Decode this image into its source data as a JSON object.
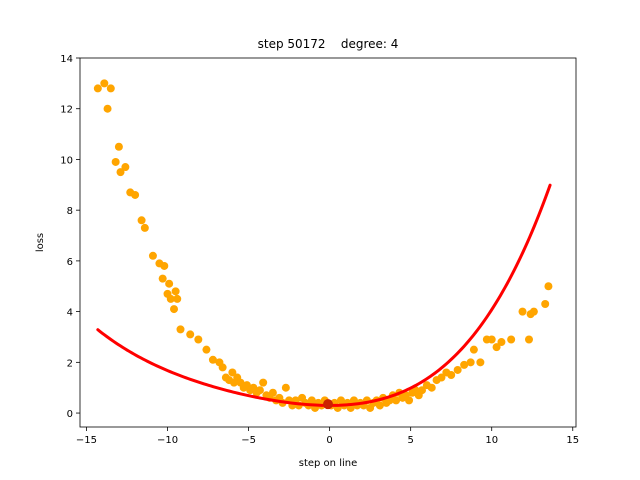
{
  "chart_data": {
    "type": "scatter",
    "title": "step 50172    degree: 4",
    "xlabel": "step on line",
    "ylabel": "loss",
    "xlim": [
      -15.4,
      15.2
    ],
    "ylim": [
      -0.55,
      14.0
    ],
    "xticks": [
      -15,
      -10,
      -5,
      0,
      5,
      10,
      15
    ],
    "yticks": [
      0,
      2,
      4,
      6,
      8,
      10,
      12,
      14
    ],
    "grid": false,
    "scatter_color": "#FFA500",
    "fit_color": "#FF0000",
    "marker_color": "#CC2200",
    "fit": {
      "name": "",
      "degree": 4,
      "x_range": [
        -14.3,
        13.6
      ],
      "coefficients": [
        0.3,
        0.0,
        0.02,
        0.0012,
        5.75e-05
      ]
    },
    "highlight_point": {
      "x": -0.1,
      "y": 0.35
    },
    "points": [
      [
        -14.3,
        12.8
      ],
      [
        -13.9,
        13.0
      ],
      [
        -13.5,
        12.8
      ],
      [
        -13.7,
        12.0
      ],
      [
        -13.2,
        9.9
      ],
      [
        -13.0,
        10.5
      ],
      [
        -12.9,
        9.5
      ],
      [
        -12.6,
        9.7
      ],
      [
        -12.3,
        8.7
      ],
      [
        -12.0,
        8.6
      ],
      [
        -11.6,
        7.6
      ],
      [
        -11.4,
        7.3
      ],
      [
        -10.9,
        6.2
      ],
      [
        -10.5,
        5.9
      ],
      [
        -10.3,
        5.3
      ],
      [
        -10.2,
        5.8
      ],
      [
        -10.0,
        4.7
      ],
      [
        -9.9,
        5.1
      ],
      [
        -9.8,
        4.5
      ],
      [
        -9.5,
        4.8
      ],
      [
        -9.6,
        4.1
      ],
      [
        -9.4,
        4.5
      ],
      [
        -9.2,
        3.3
      ],
      [
        -8.6,
        3.1
      ],
      [
        -8.1,
        2.9
      ],
      [
        -7.6,
        2.5
      ],
      [
        -7.2,
        2.1
      ],
      [
        -6.8,
        2.0
      ],
      [
        -6.6,
        1.8
      ],
      [
        -6.4,
        1.4
      ],
      [
        -6.2,
        1.3
      ],
      [
        -6.0,
        1.6
      ],
      [
        -5.9,
        1.2
      ],
      [
        -5.7,
        1.4
      ],
      [
        -5.5,
        1.2
      ],
      [
        -5.3,
        1.0
      ],
      [
        -5.1,
        1.1
      ],
      [
        -4.9,
        0.9
      ],
      [
        -4.7,
        1.0
      ],
      [
        -4.5,
        0.8
      ],
      [
        -4.3,
        0.9
      ],
      [
        -4.1,
        1.2
      ],
      [
        -3.9,
        0.7
      ],
      [
        -3.7,
        0.6
      ],
      [
        -3.5,
        0.8
      ],
      [
        -3.3,
        0.5
      ],
      [
        -3.1,
        0.6
      ],
      [
        -2.9,
        0.4
      ],
      [
        -2.7,
        1.0
      ],
      [
        -2.5,
        0.5
      ],
      [
        -2.3,
        0.3
      ],
      [
        -2.1,
        0.5
      ],
      [
        -1.9,
        0.3
      ],
      [
        -1.7,
        0.6
      ],
      [
        -1.5,
        0.4
      ],
      [
        -1.3,
        0.3
      ],
      [
        -1.1,
        0.5
      ],
      [
        -0.9,
        0.2
      ],
      [
        -0.7,
        0.4
      ],
      [
        -0.5,
        0.3
      ],
      [
        -0.3,
        0.5
      ],
      [
        0.1,
        0.3
      ],
      [
        0.3,
        0.4
      ],
      [
        0.5,
        0.2
      ],
      [
        0.7,
        0.5
      ],
      [
        0.9,
        0.3
      ],
      [
        1.1,
        0.4
      ],
      [
        1.3,
        0.2
      ],
      [
        1.5,
        0.5
      ],
      [
        1.7,
        0.3
      ],
      [
        1.9,
        0.4
      ],
      [
        2.1,
        0.3
      ],
      [
        2.3,
        0.5
      ],
      [
        2.5,
        0.2
      ],
      [
        2.7,
        0.4
      ],
      [
        2.9,
        0.5
      ],
      [
        3.1,
        0.3
      ],
      [
        3.3,
        0.6
      ],
      [
        3.5,
        0.4
      ],
      [
        3.7,
        0.5
      ],
      [
        3.9,
        0.7
      ],
      [
        4.1,
        0.5
      ],
      [
        4.3,
        0.8
      ],
      [
        4.5,
        0.6
      ],
      [
        4.7,
        0.7
      ],
      [
        4.9,
        0.5
      ],
      [
        5.1,
        0.8
      ],
      [
        5.3,
        0.9
      ],
      [
        5.5,
        0.7
      ],
      [
        5.7,
        0.9
      ],
      [
        6.0,
        1.1
      ],
      [
        6.3,
        1.0
      ],
      [
        6.6,
        1.3
      ],
      [
        6.9,
        1.4
      ],
      [
        7.2,
        1.6
      ],
      [
        7.5,
        1.5
      ],
      [
        7.9,
        1.7
      ],
      [
        8.3,
        1.9
      ],
      [
        8.7,
        2.0
      ],
      [
        8.9,
        2.5
      ],
      [
        9.3,
        2.0
      ],
      [
        9.7,
        2.9
      ],
      [
        10.0,
        2.9
      ],
      [
        10.3,
        2.6
      ],
      [
        10.6,
        2.8
      ],
      [
        11.2,
        2.9
      ],
      [
        11.9,
        4.0
      ],
      [
        12.3,
        2.9
      ],
      [
        12.4,
        3.9
      ],
      [
        12.6,
        4.0
      ],
      [
        13.3,
        4.3
      ],
      [
        13.5,
        5.0
      ]
    ]
  }
}
